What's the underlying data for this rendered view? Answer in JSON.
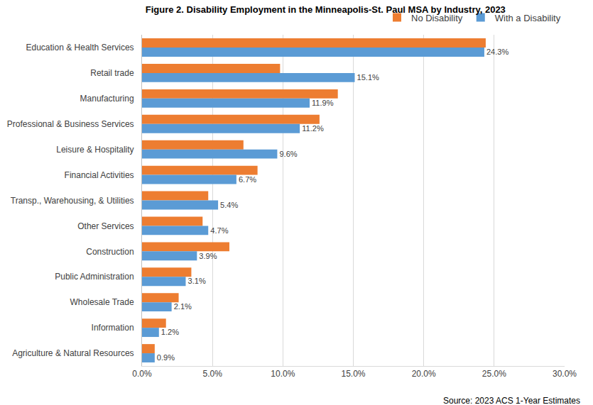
{
  "chart_data": {
    "type": "bar",
    "orientation": "horizontal",
    "title": "Figure 2. Disability Employment in the Minneapolis-St. Paul MSA by Industry, 2023",
    "source": "Source: 2023 ACS 1-Year Estimates",
    "categories": [
      "Education & Health Services",
      "Retail trade",
      "Manufacturing",
      "Professional & Business Services",
      "Leisure & Hospitality",
      "Financial Activities",
      "Transp., Warehousing, & Utilities",
      "Other Services",
      "Construction",
      "Public Administration",
      "Wholesale Trade",
      "Information",
      "Agriculture & Natural Resources"
    ],
    "series": [
      {
        "name": "No Disability",
        "color": "#ED7D31",
        "data_labels": false,
        "values": [
          24.4,
          9.8,
          13.9,
          12.6,
          7.2,
          8.2,
          4.7,
          4.3,
          6.2,
          3.5,
          2.6,
          1.7,
          0.9
        ]
      },
      {
        "name": "With a Disability",
        "color": "#5B9BD5",
        "data_labels": true,
        "values": [
          24.3,
          15.1,
          11.9,
          11.2,
          9.6,
          6.7,
          5.4,
          4.7,
          3.9,
          3.1,
          2.1,
          1.2,
          0.9
        ],
        "value_labels": [
          "24.3%",
          "15.1%",
          "11.9%",
          "11.2%",
          "9.6%",
          "6.7%",
          "5.4%",
          "4.7%",
          "3.9%",
          "3.1%",
          "2.1%",
          "1.2%",
          "0.9%"
        ]
      }
    ],
    "xlim": [
      0,
      30
    ],
    "xticks": [
      {
        "value": 0,
        "label": "0.0%"
      },
      {
        "value": 5,
        "label": "5.0%"
      },
      {
        "value": 10,
        "label": "10.0%"
      },
      {
        "value": 15,
        "label": "15.0%"
      },
      {
        "value": 20,
        "label": "20.0%"
      },
      {
        "value": 25,
        "label": "25.0%"
      },
      {
        "value": 30,
        "label": "30.0%"
      }
    ],
    "grid": true,
    "legend": "top right"
  }
}
